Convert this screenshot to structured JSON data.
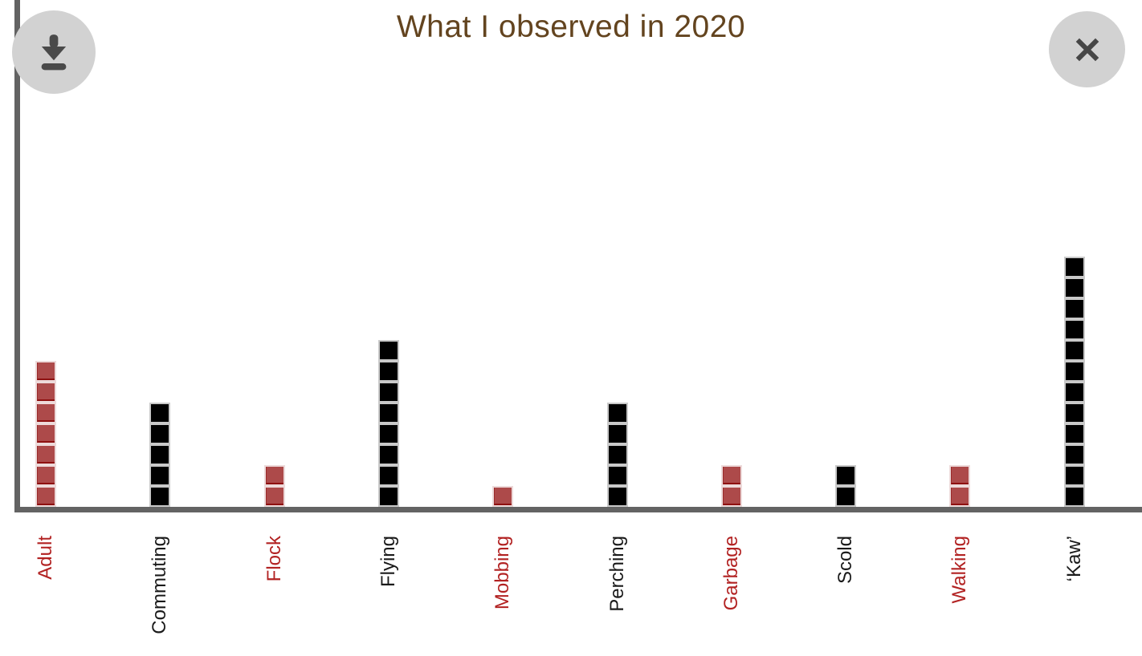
{
  "header": {
    "title": "What I observed in 2020"
  },
  "toolbar": {
    "download_icon": "download-arrow-with-tray",
    "close_icon": "x-cross"
  },
  "colors": {
    "background": "#ffffff",
    "title": "#63441f",
    "axis": "#636363",
    "button_circle": "#d2d2d2",
    "button_glyph": "#4a4a4a",
    "red_square_fill": "#ad4a4a",
    "red_square_border": "#8e1010",
    "black_square_fill": "#000000",
    "black_square_border": "#c9c9c9",
    "red_label": "#b22222",
    "black_label": "#1a1a1a"
  },
  "chart_data": {
    "type": "bar",
    "subtype": "waffle-pictograph, 1 square = 1 observation, stacked vertically per category",
    "title": "What I observed in 2020",
    "categories": [
      "Adult",
      "Commuting",
      "Flock",
      "Flying",
      "Mobbing",
      "Perching",
      "Garbage",
      "Scold",
      "Walking",
      "‘Kaw’"
    ],
    "values": [
      7,
      5,
      2,
      8,
      1,
      5,
      2,
      2,
      2,
      12
    ],
    "category_colors": [
      "red",
      "black",
      "red",
      "black",
      "red",
      "black",
      "red",
      "black",
      "red",
      "black"
    ],
    "xlabel": "",
    "ylabel": "",
    "ylim": [
      0,
      12
    ],
    "grid": false,
    "legend": false,
    "label_rotation_degrees": -90
  }
}
